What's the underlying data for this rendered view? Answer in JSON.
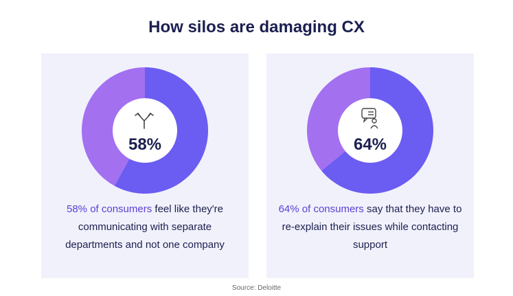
{
  "title": "How silos are damaging CX",
  "source": "Source: Deloitte",
  "chart_data": [
    {
      "type": "donut",
      "values": [
        58,
        42
      ],
      "value_labels": [
        "58%",
        null
      ],
      "colors": [
        "#6b5cf2",
        "#a370f0"
      ],
      "caption": {
        "highlight": "58% of consumers",
        "text": "feel like they're communicating with separate departments and not one company"
      }
    },
    {
      "type": "donut",
      "values": [
        64,
        36
      ],
      "value_labels": [
        "64%",
        null
      ],
      "colors": [
        "#6b5cf2",
        "#a370f0"
      ],
      "caption": {
        "highlight": "64% of consumers",
        "text": "say that they have to re-explain their issues while contacting support"
      }
    }
  ]
}
